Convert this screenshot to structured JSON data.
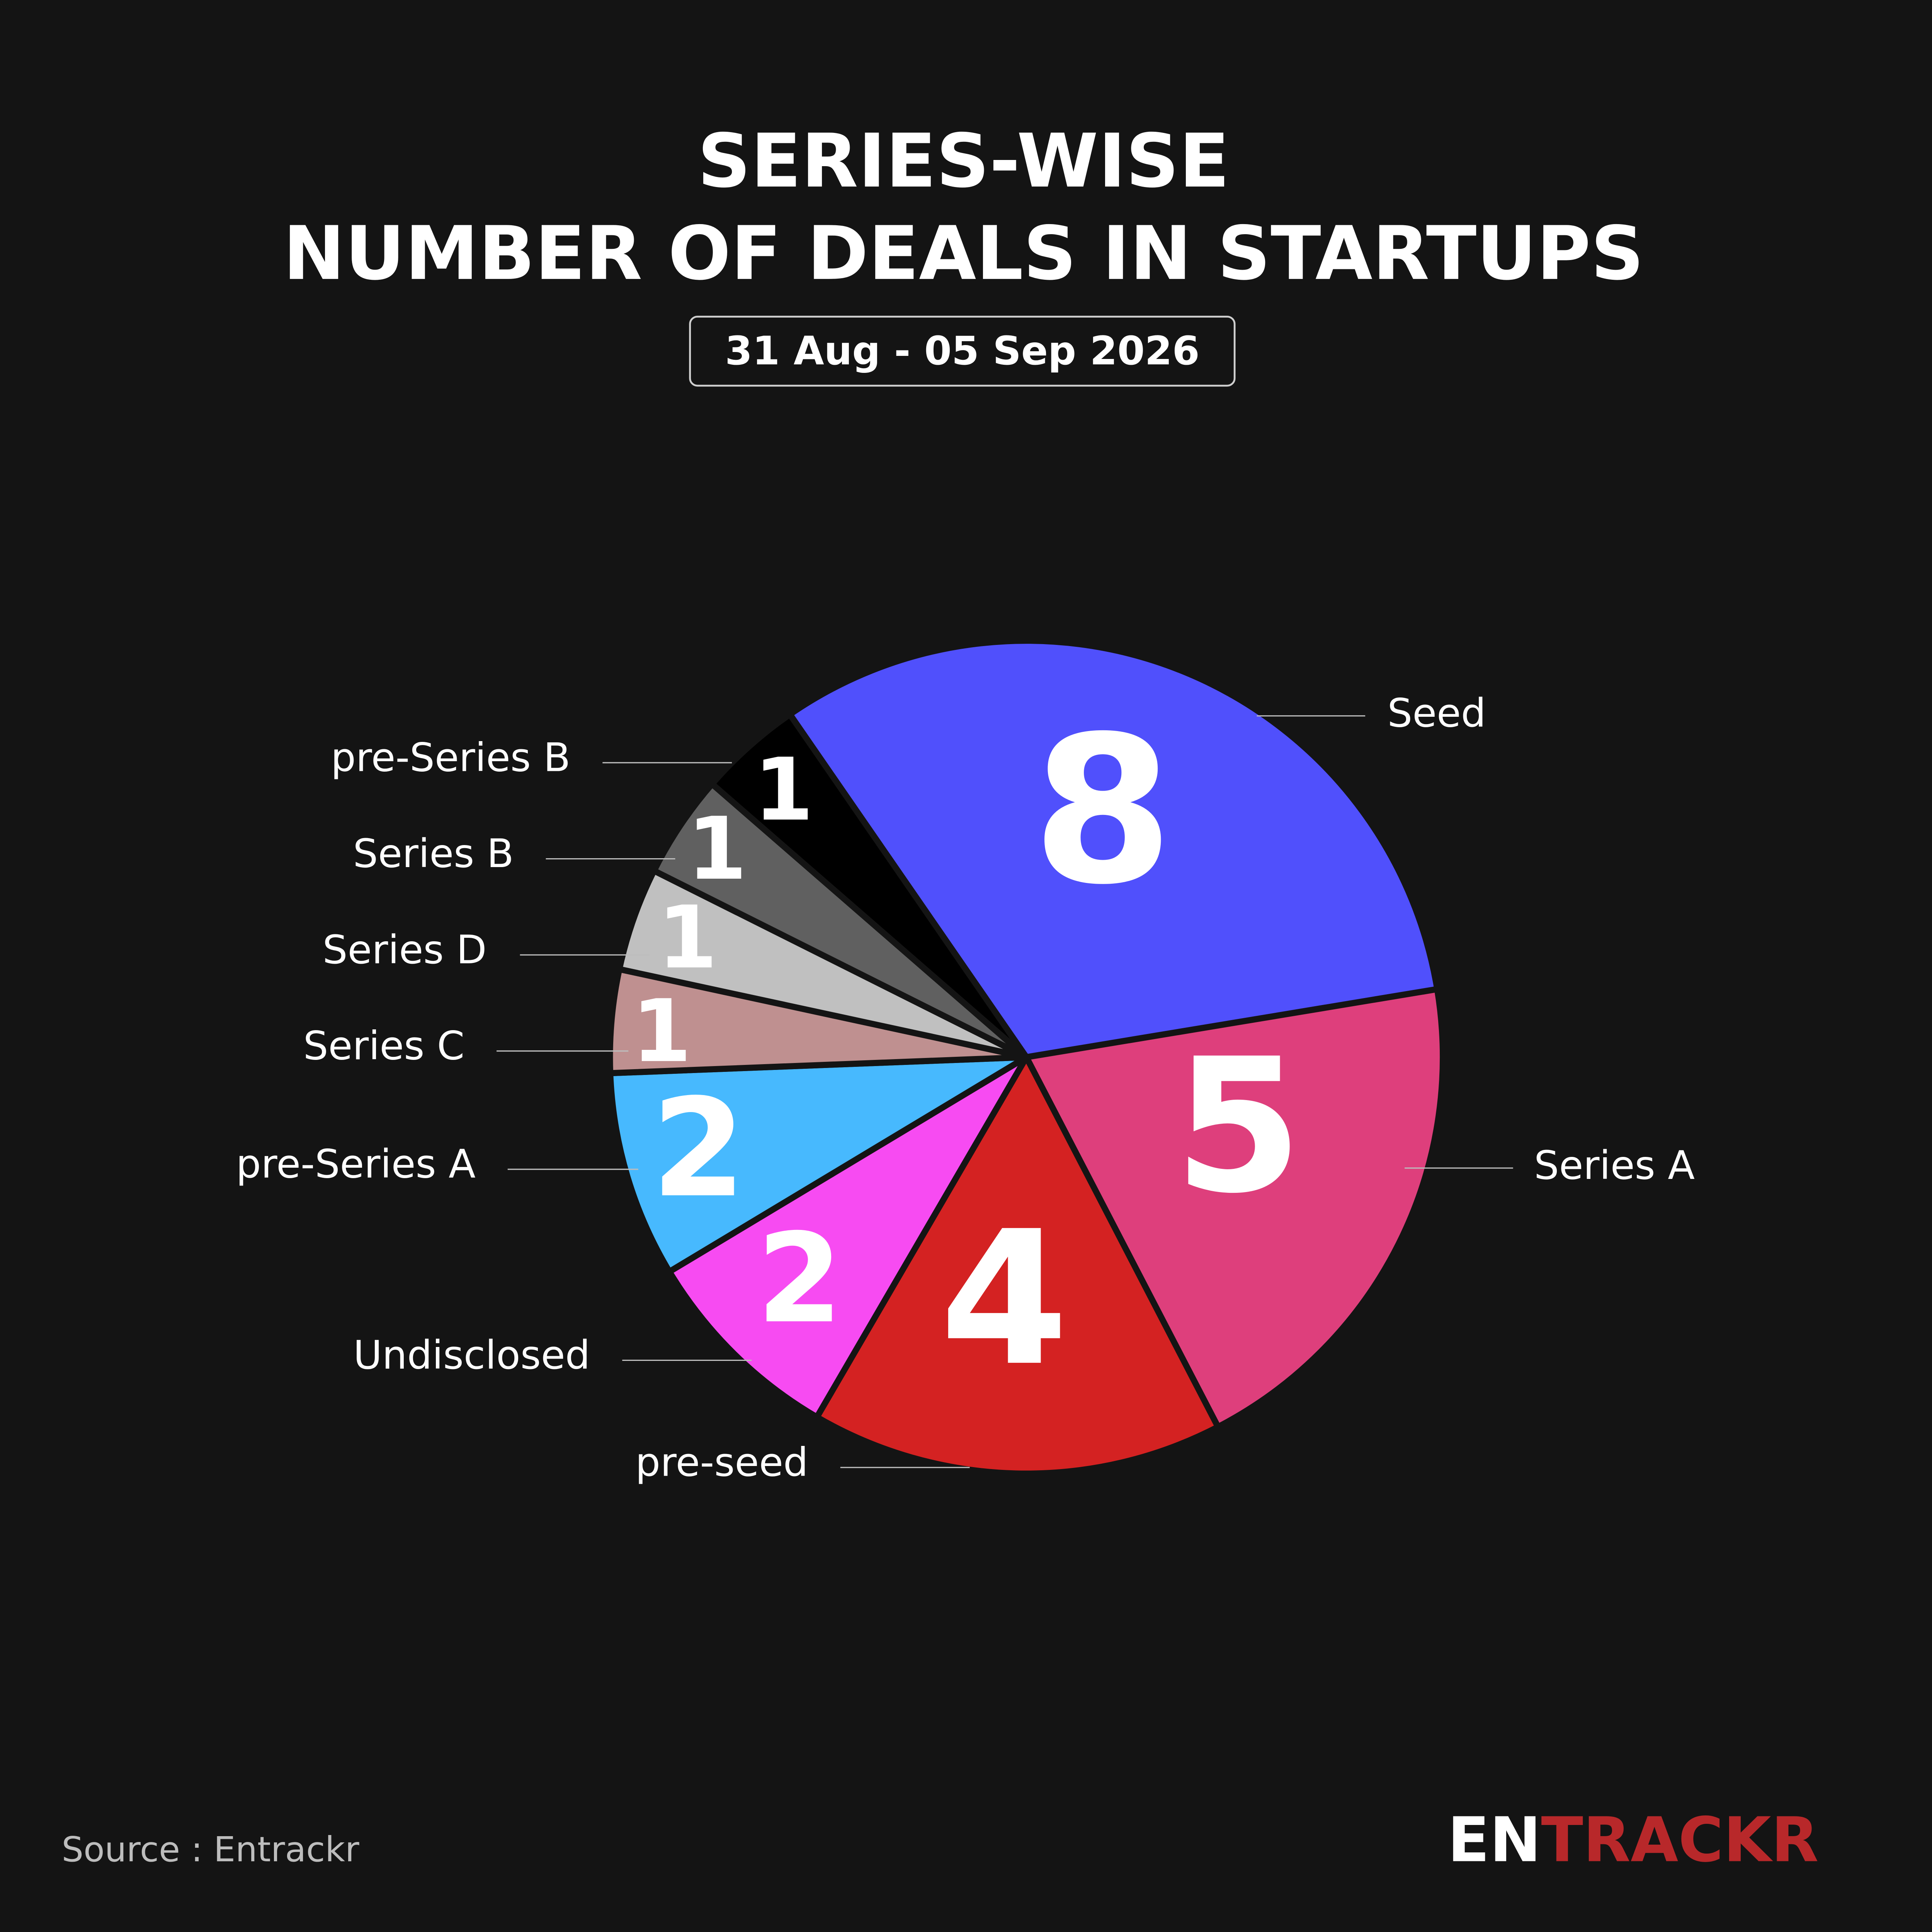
{
  "chart_data": {
    "type": "pie",
    "title": [
      "SERIES-WISE",
      "NUMBER OF DEALS IN STARTUPS"
    ],
    "subtitle": "31 Aug - 05 Sep 2026",
    "categories": [
      "Seed",
      "Series A",
      "pre-seed",
      "Undisclosed",
      "pre-Series A",
      "Series C",
      "Series D",
      "Series B",
      "pre-Series B"
    ],
    "values": [
      8,
      5,
      4,
      2,
      2,
      1,
      1,
      1,
      1
    ],
    "colors": [
      "#5050fc",
      "#de3f7c",
      "#d42222",
      "#f74bf2",
      "#47b9fe",
      "#bf9090",
      "#c0c0c0",
      "#606060",
      "#000000"
    ],
    "source": "Source : Entrackr",
    "logo": [
      "EN",
      "TRACKR"
    ]
  }
}
